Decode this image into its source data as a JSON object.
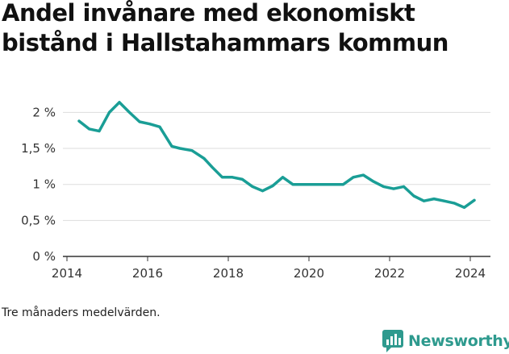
{
  "title": "Andel invånare med ekonomiskt bistånd i Hallstahammars kommun",
  "footnote": "Tre månaders medelvärden.",
  "brand": {
    "name": "Newsworthy",
    "color": "#2e9a8e"
  },
  "chart_data": {
    "type": "line",
    "title": "Andel invånare med ekonomiskt bistånd i Hallstahammars kommun",
    "xlabel": "",
    "ylabel": "",
    "xlim": [
      2013.9,
      2024.5
    ],
    "ylim": [
      0,
      2.15
    ],
    "grid": true,
    "line_color": "#1a9e96",
    "x_ticks": [
      {
        "value": 2014,
        "label": "2014"
      },
      {
        "value": 2016,
        "label": "2016"
      },
      {
        "value": 2018,
        "label": "2018"
      },
      {
        "value": 2020,
        "label": "2020"
      },
      {
        "value": 2022,
        "label": "2022"
      },
      {
        "value": 2024,
        "label": "2024"
      }
    ],
    "y_ticks": [
      {
        "value": 0,
        "label": "0 %"
      },
      {
        "value": 0.5,
        "label": "0,5 %"
      },
      {
        "value": 1,
        "label": "1 %"
      },
      {
        "value": 1.5,
        "label": "1,5 %"
      },
      {
        "value": 2,
        "label": "2 %"
      }
    ],
    "series": [
      {
        "x": [
          2014.3,
          2014.55,
          2014.8,
          2015.05,
          2015.3,
          2015.55,
          2015.8,
          2016.05,
          2016.3,
          2016.6,
          2016.8,
          2017.1,
          2017.4,
          2017.6,
          2017.85,
          2018.1,
          2018.35,
          2018.6,
          2018.85,
          2019.1,
          2019.35,
          2019.6,
          2019.85,
          2020.1,
          2020.35,
          2020.6,
          2020.85,
          2021.1,
          2021.35,
          2021.6,
          2021.85,
          2022.1,
          2022.35,
          2022.6,
          2022.85,
          2023.1,
          2023.35,
          2023.6,
          2023.85,
          2024.1
        ],
        "values": [
          1.88,
          1.77,
          1.74,
          2.0,
          2.14,
          2.0,
          1.87,
          1.84,
          1.8,
          1.53,
          1.5,
          1.47,
          1.36,
          1.24,
          1.1,
          1.1,
          1.07,
          0.97,
          0.91,
          0.98,
          1.1,
          1.0,
          1.0,
          1.0,
          1.0,
          1.0,
          1.0,
          1.1,
          1.13,
          1.04,
          0.97,
          0.94,
          0.97,
          0.84,
          0.77,
          0.8,
          0.77,
          0.74,
          0.68,
          0.78
        ]
      }
    ]
  }
}
